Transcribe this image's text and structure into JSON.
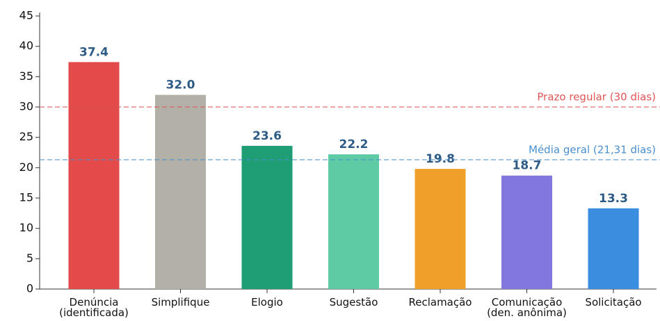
{
  "chart_data": {
    "type": "bar",
    "categories": [
      "Denúncia\n(identificada)",
      "Simplifique",
      "Elogio",
      "Sugestão",
      "Reclamação",
      "Comunicação\n(den. anônima)",
      "Solicitação"
    ],
    "values": [
      37.4,
      32.0,
      23.6,
      22.2,
      19.8,
      18.7,
      13.3
    ],
    "value_labels": [
      "37.4",
      "32.0",
      "23.6",
      "22.2",
      "19.8",
      "18.7",
      "13.3"
    ],
    "colors": [
      "#e34a4a",
      "#b3b0a8",
      "#1f9e76",
      "#5ecba4",
      "#eea02a",
      "#8277dd",
      "#3a8ddf"
    ],
    "ylim": [
      0,
      45
    ],
    "yticks": [
      0,
      5,
      10,
      15,
      20,
      25,
      30,
      35,
      40,
      45
    ],
    "reference_lines": [
      {
        "value": 30,
        "label": "Prazo regular (30 dias)",
        "color": "#e05555"
      },
      {
        "value": 21.31,
        "label": "Média geral (21,31 dias)",
        "color": "#4a90d0"
      }
    ]
  }
}
